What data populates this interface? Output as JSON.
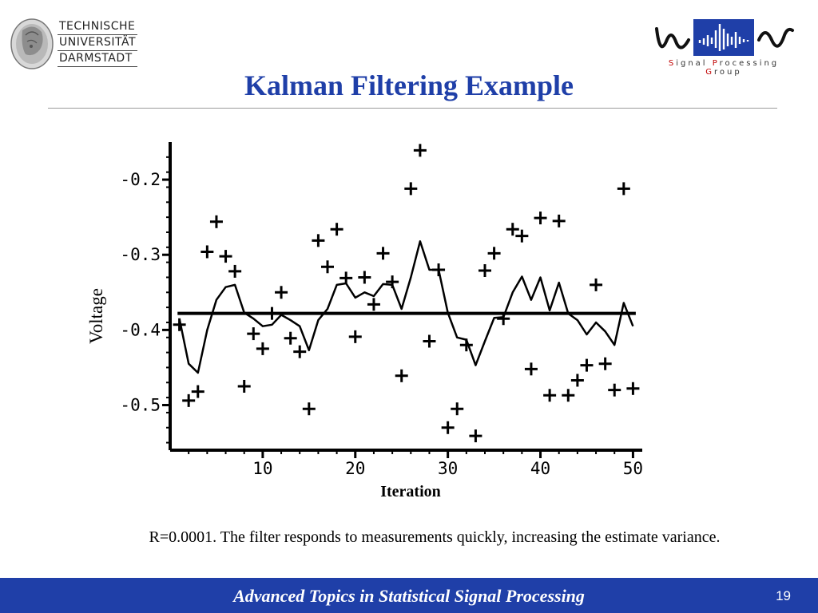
{
  "header": {
    "university_lines": [
      "TECHNISCHE",
      "UNIVERSITÄT",
      "DARMSTADT"
    ],
    "group_caption": [
      "S",
      "ignal ",
      "P",
      "rocessing ",
      "G",
      "roup"
    ]
  },
  "slide": {
    "title": "Kalman Filtering Example",
    "caption": "R=0.0001. The filter responds to measurements quickly, increasing the estimate variance."
  },
  "footer": {
    "course_title": "Advanced Topics in Statistical Signal Processing",
    "page_number": "19"
  },
  "chart_data": {
    "type": "line",
    "xlabel": "Iteration",
    "ylabel": "Voltage",
    "xlim": [
      0,
      51
    ],
    "ylim": [
      -0.56,
      -0.15
    ],
    "x_ticks": [
      10,
      20,
      30,
      40,
      50
    ],
    "x_tick_labels": [
      "10",
      "20",
      "30",
      "40",
      "50"
    ],
    "y_ticks": [
      -0.2,
      -0.3,
      -0.4,
      -0.5
    ],
    "y_tick_labels": [
      "-0.2",
      "-0.3",
      "-0.4",
      "-0.5"
    ],
    "true_value": -0.378,
    "series": [
      {
        "kind": "measurements",
        "x": [
          1,
          2,
          3,
          4,
          5,
          6,
          7,
          8,
          9,
          10,
          11,
          12,
          13,
          14,
          15,
          16,
          17,
          18,
          19,
          20,
          21,
          22,
          23,
          24,
          25,
          26,
          27,
          28,
          29,
          30,
          31,
          32,
          33,
          34,
          35,
          36,
          37,
          38,
          39,
          40,
          41,
          42,
          43,
          44,
          45,
          46,
          47,
          48,
          49,
          50
        ],
        "values": [
          -0.393,
          -0.494,
          -0.482,
          -0.296,
          -0.256,
          -0.302,
          -0.322,
          -0.475,
          -0.405,
          -0.425,
          -0.378,
          -0.35,
          -0.411,
          -0.429,
          -0.505,
          -0.281,
          -0.316,
          -0.266,
          -0.331,
          -0.409,
          -0.33,
          -0.366,
          -0.298,
          -0.336,
          -0.461,
          -0.212,
          -0.161,
          -0.415,
          -0.32,
          -0.53,
          -0.505,
          -0.42,
          -0.541,
          -0.321,
          -0.298,
          -0.385,
          -0.266,
          -0.275,
          -0.452,
          -0.251,
          -0.487,
          -0.255,
          -0.487,
          -0.467,
          -0.447,
          -0.34,
          -0.445,
          -0.48,
          -0.212,
          -0.478
        ]
      },
      {
        "kind": "estimate",
        "x": [
          1,
          2,
          3,
          4,
          5,
          6,
          7,
          8,
          9,
          10,
          11,
          12,
          13,
          14,
          15,
          16,
          17,
          18,
          19,
          20,
          21,
          22,
          23,
          24,
          25,
          26,
          27,
          28,
          29,
          30,
          31,
          32,
          33,
          34,
          35,
          36,
          37,
          38,
          39,
          40,
          41,
          42,
          43,
          44,
          45,
          46,
          47,
          48,
          49,
          50
        ],
        "values": [
          -0.385,
          -0.445,
          -0.457,
          -0.4,
          -0.36,
          -0.343,
          -0.34,
          -0.377,
          -0.385,
          -0.395,
          -0.393,
          -0.38,
          -0.387,
          -0.395,
          -0.427,
          -0.387,
          -0.372,
          -0.34,
          -0.338,
          -0.357,
          -0.35,
          -0.355,
          -0.339,
          -0.34,
          -0.372,
          -0.33,
          -0.282,
          -0.32,
          -0.32,
          -0.377,
          -0.41,
          -0.413,
          -0.447,
          -0.415,
          -0.384,
          -0.383,
          -0.35,
          -0.329,
          -0.36,
          -0.33,
          -0.374,
          -0.337,
          -0.378,
          -0.387,
          -0.406,
          -0.39,
          -0.402,
          -0.42,
          -0.364,
          -0.395
        ]
      }
    ]
  }
}
